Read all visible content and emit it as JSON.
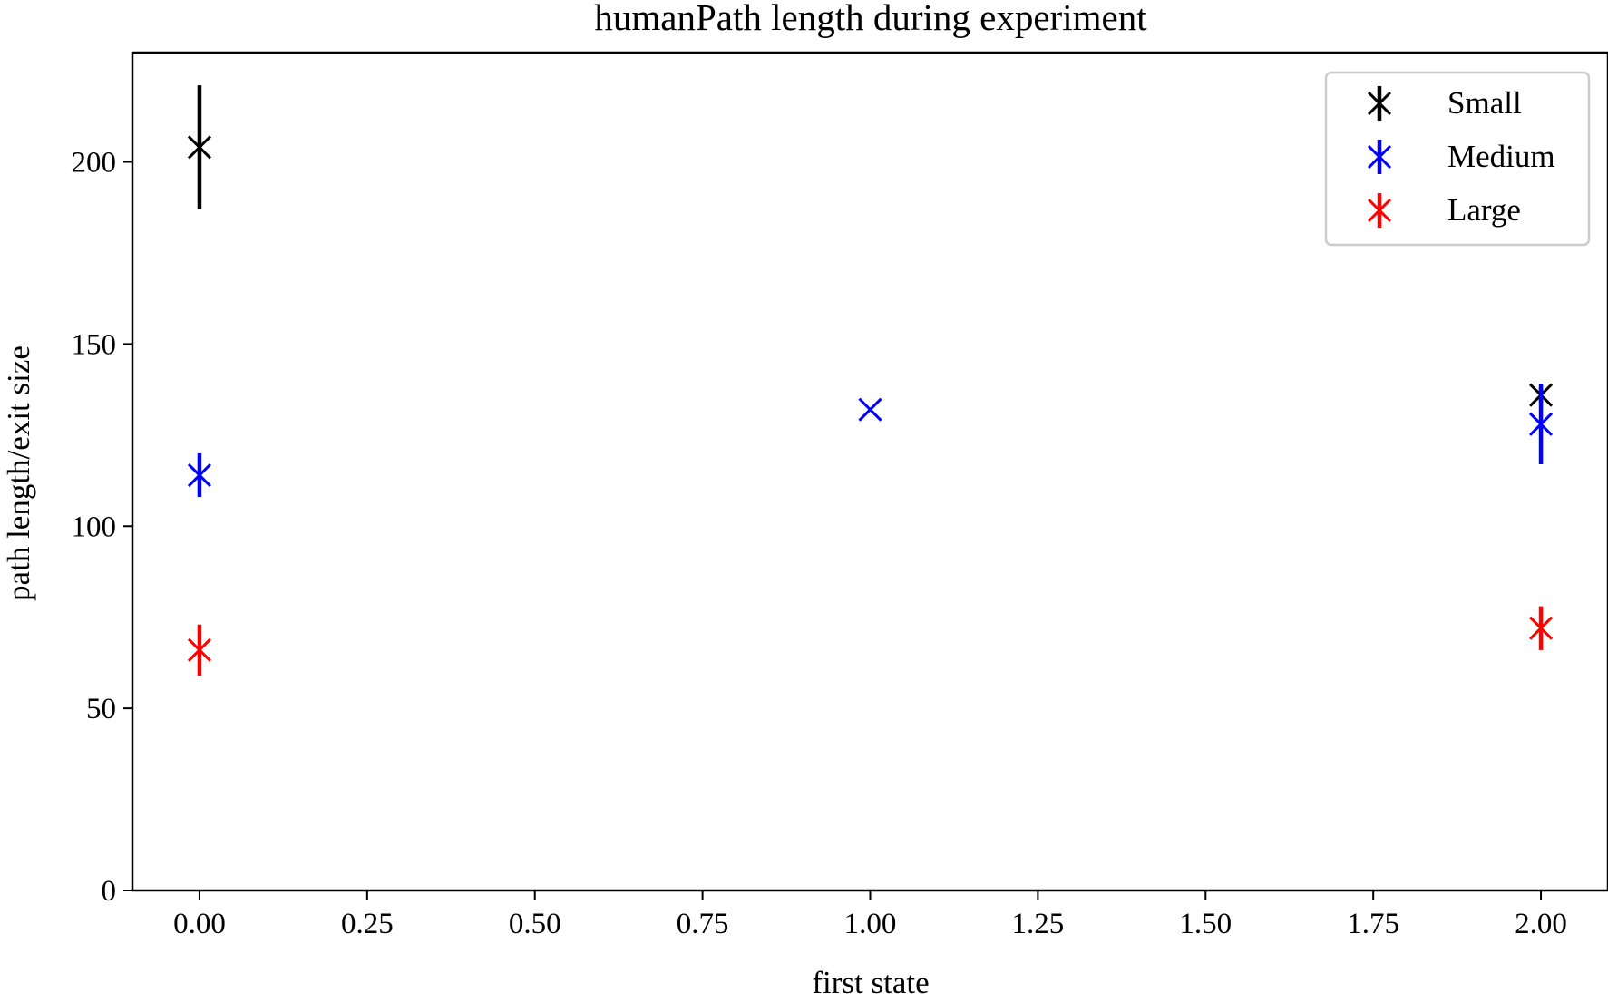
{
  "chart_data": {
    "type": "scatter",
    "title": "humanPath length during experiment",
    "xlabel": "first state",
    "ylabel": "path length/exit size",
    "xlim": [
      -0.1,
      2.1
    ],
    "ylim": [
      0,
      230
    ],
    "xticks": [
      0.0,
      0.25,
      0.5,
      0.75,
      1.0,
      1.25,
      1.5,
      1.75,
      2.0
    ],
    "xtick_labels": [
      "0.00",
      "0.25",
      "0.50",
      "0.75",
      "1.00",
      "1.25",
      "1.50",
      "1.75",
      "2.00"
    ],
    "yticks": [
      0,
      50,
      100,
      150,
      200
    ],
    "ytick_labels": [
      "0",
      "50",
      "100",
      "150",
      "200"
    ],
    "grid": false,
    "legend_position": "top-right",
    "marker": "x",
    "error_bars": true,
    "series": [
      {
        "name": "Small",
        "color": "#000000",
        "points": [
          {
            "x": 0,
            "y": 204,
            "err": 17
          },
          {
            "x": 2,
            "y": 136,
            "err": 2
          }
        ]
      },
      {
        "name": "Medium",
        "color": "#0000ff",
        "points": [
          {
            "x": 0,
            "y": 114,
            "err": 6
          },
          {
            "x": 1,
            "y": 132,
            "err": 0
          },
          {
            "x": 2,
            "y": 128,
            "err": 11
          }
        ]
      },
      {
        "name": "Large",
        "color": "#ff0000",
        "points": [
          {
            "x": 0,
            "y": 66,
            "err": 7
          },
          {
            "x": 2,
            "y": 72,
            "err": 6
          }
        ]
      }
    ]
  }
}
